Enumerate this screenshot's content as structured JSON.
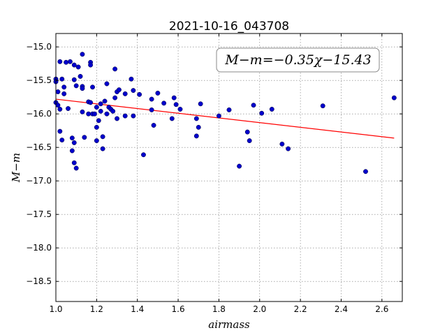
{
  "chart_data": {
    "type": "scatter",
    "title": "2021-10-16_043708",
    "xlabel": "airmass",
    "ylabel": "M−m",
    "xlim": [
      1.0,
      2.7
    ],
    "ylim": [
      -18.8,
      -14.8
    ],
    "xticks": [
      "1.0",
      "1.2",
      "1.4",
      "1.6",
      "1.8",
      "2.0",
      "2.2",
      "2.4",
      "2.6"
    ],
    "yticks": [
      "−15.0",
      "−15.5",
      "−16.0",
      "−16.5",
      "−17.0",
      "−17.5",
      "−18.0",
      "−18.5"
    ],
    "grid": true,
    "annotation": "M−m=−0.35χ−15.43",
    "fit": {
      "slope": -0.35,
      "intercept": -15.43,
      "x_range": [
        1.0,
        2.66
      ],
      "color": "#ff0000"
    },
    "point_color": "#0000cc",
    "points": [
      [
        1.0,
        -15.48
      ],
      [
        1.0,
        -15.52
      ],
      [
        1.0,
        -15.83
      ],
      [
        1.01,
        -15.67
      ],
      [
        1.01,
        -15.87
      ],
      [
        1.02,
        -16.26
      ],
      [
        1.02,
        -15.93
      ],
      [
        1.02,
        -15.22
      ],
      [
        1.03,
        -15.48
      ],
      [
        1.03,
        -16.39
      ],
      [
        1.04,
        -15.6
      ],
      [
        1.04,
        -15.7
      ],
      [
        1.05,
        -15.23
      ],
      [
        1.06,
        -15.92
      ],
      [
        1.07,
        -15.22
      ],
      [
        1.08,
        -16.36
      ],
      [
        1.08,
        -16.55
      ],
      [
        1.09,
        -15.27
      ],
      [
        1.09,
        -15.49
      ],
      [
        1.09,
        -16.43
      ],
      [
        1.09,
        -16.73
      ],
      [
        1.1,
        -16.81
      ],
      [
        1.1,
        -15.58
      ],
      [
        1.11,
        -15.3
      ],
      [
        1.12,
        -15.44
      ],
      [
        1.13,
        -15.11
      ],
      [
        1.13,
        -15.59
      ],
      [
        1.13,
        -15.62
      ],
      [
        1.13,
        -15.97
      ],
      [
        1.14,
        -16.35
      ],
      [
        1.16,
        -15.82
      ],
      [
        1.16,
        -16.0
      ],
      [
        1.17,
        -15.83
      ],
      [
        1.17,
        -15.23
      ],
      [
        1.17,
        -15.27
      ],
      [
        1.18,
        -15.6
      ],
      [
        1.18,
        -16.0
      ],
      [
        1.19,
        -16.0
      ],
      [
        1.2,
        -15.9
      ],
      [
        1.2,
        -16.2
      ],
      [
        1.2,
        -16.4
      ],
      [
        1.21,
        -16.1
      ],
      [
        1.22,
        -15.96
      ],
      [
        1.22,
        -15.85
      ],
      [
        1.23,
        -16.34
      ],
      [
        1.23,
        -16.52
      ],
      [
        1.24,
        -15.81
      ],
      [
        1.25,
        -15.55
      ],
      [
        1.25,
        -16.0
      ],
      [
        1.26,
        -15.9
      ],
      [
        1.27,
        -15.93
      ],
      [
        1.28,
        -15.96
      ],
      [
        1.29,
        -15.33
      ],
      [
        1.29,
        -15.76
      ],
      [
        1.3,
        -16.07
      ],
      [
        1.3,
        -15.67
      ],
      [
        1.31,
        -15.64
      ],
      [
        1.34,
        -15.7
      ],
      [
        1.34,
        -16.03
      ],
      [
        1.37,
        -15.48
      ],
      [
        1.38,
        -16.03
      ],
      [
        1.38,
        -15.65
      ],
      [
        1.41,
        -15.71
      ],
      [
        1.43,
        -16.61
      ],
      [
        1.47,
        -15.78
      ],
      [
        1.47,
        -15.94
      ],
      [
        1.48,
        -16.17
      ],
      [
        1.5,
        -15.69
      ],
      [
        1.53,
        -15.84
      ],
      [
        1.57,
        -16.07
      ],
      [
        1.58,
        -15.76
      ],
      [
        1.59,
        -15.86
      ],
      [
        1.61,
        -15.93
      ],
      [
        1.69,
        -16.33
      ],
      [
        1.69,
        -16.07
      ],
      [
        1.7,
        -16.2
      ],
      [
        1.71,
        -15.85
      ],
      [
        1.8,
        -16.03
      ],
      [
        1.85,
        -15.94
      ],
      [
        1.9,
        -16.78
      ],
      [
        1.94,
        -16.27
      ],
      [
        1.95,
        -16.4
      ],
      [
        1.97,
        -15.87
      ],
      [
        2.01,
        -15.99
      ],
      [
        2.06,
        -15.93
      ],
      [
        2.11,
        -16.45
      ],
      [
        2.14,
        -16.52
      ],
      [
        2.31,
        -15.88
      ],
      [
        2.52,
        -16.86
      ],
      [
        2.66,
        -15.76
      ]
    ]
  }
}
